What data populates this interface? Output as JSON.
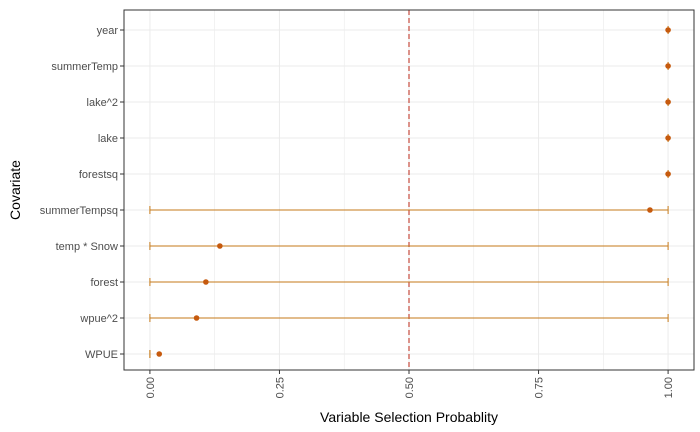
{
  "chart_data": {
    "type": "dot-interval",
    "xlabel": "Variable Selection Probablity",
    "ylabel": "Covariate",
    "xlim": [
      -0.05,
      1.05
    ],
    "x_ticks": [
      "0.00",
      "0.25",
      "0.50",
      "0.75",
      "1.00"
    ],
    "reference_line": {
      "x": 0.5,
      "style": "dashed",
      "color": "#c0392b"
    },
    "grid": true,
    "colors": {
      "point": "#c65a0e",
      "interval": "#c67a1a",
      "grid": "#ebebeb",
      "panel_border": "#333333"
    },
    "covariates": [
      "year",
      "summerTemp",
      "lake^2",
      "lake",
      "forestsq",
      "summerTempsq",
      "temp * Snow",
      "forest",
      "wpue^2",
      "WPUE"
    ],
    "estimates": [
      1.0,
      1.0,
      1.0,
      1.0,
      1.0,
      0.965,
      0.135,
      0.108,
      0.09,
      0.018
    ],
    "lower": [
      1.0,
      1.0,
      1.0,
      1.0,
      1.0,
      0.0,
      0.0,
      0.0,
      0.0,
      0.0
    ],
    "upper": [
      1.0,
      1.0,
      1.0,
      1.0,
      1.0,
      1.0,
      1.0,
      1.0,
      1.0,
      0.0
    ]
  }
}
